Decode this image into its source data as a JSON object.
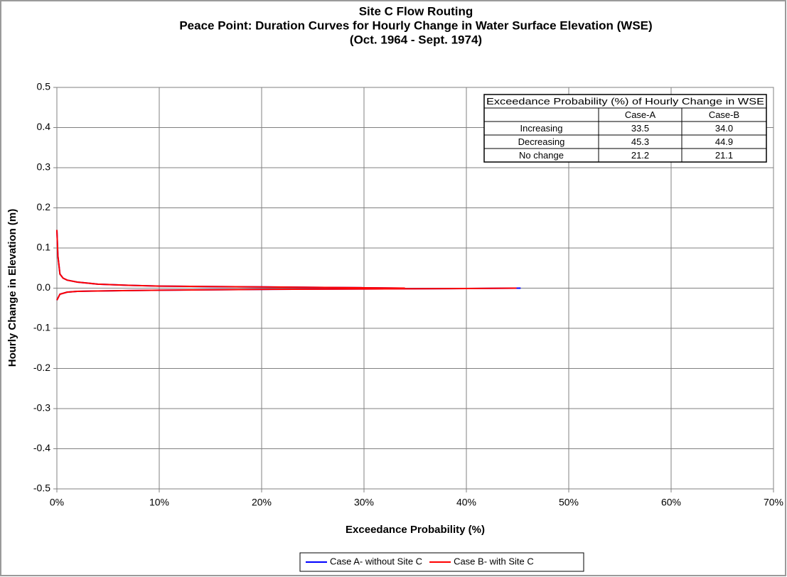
{
  "chart_data": {
    "type": "line",
    "title": "Site C Flow Routing",
    "subtitle": "Peace Point: Duration Curves for Hourly Change in Water Surface Elevation (WSE)",
    "period": "(Oct. 1964 - Sept. 1974)",
    "x_label": "Exceedance Probability (%)",
    "y_label": "Hourly Change in Elevation (m)",
    "xlim": [
      0,
      70
    ],
    "ylim": [
      -0.5,
      0.5
    ],
    "xticks": [
      {
        "value": 0,
        "label": "0%"
      },
      {
        "value": 10,
        "label": "10%"
      },
      {
        "value": 20,
        "label": "20%"
      },
      {
        "value": 30,
        "label": "30%"
      },
      {
        "value": 40,
        "label": "40%"
      },
      {
        "value": 50,
        "label": "50%"
      },
      {
        "value": 60,
        "label": "60%"
      },
      {
        "value": 70,
        "label": "70%"
      }
    ],
    "yticks": [
      0.5,
      0.4,
      0.3,
      0.2,
      0.1,
      {
        "value": 0,
        "label": "0.0"
      },
      -0.1,
      -0.2,
      -0.3,
      -0.4,
      -0.5
    ],
    "grid": true,
    "legend": "bottom",
    "series": [
      {
        "name": "Case A- without Site C",
        "color": "#0000ff",
        "x": [
          0,
          0.1,
          0.3,
          0.6,
          1,
          2,
          4,
          7,
          10,
          15,
          20,
          25,
          30,
          33.5,
          null,
          0,
          0.3,
          1,
          2,
          4,
          7,
          10,
          20,
          30,
          40,
          45.3
        ],
        "values": [
          0.145,
          0.08,
          0.035,
          0.025,
          0.02,
          0.015,
          0.01,
          0.007,
          0.005,
          0.004,
          0.003,
          0.002,
          0.001,
          0,
          null,
          -0.03,
          -0.015,
          -0.01,
          -0.008,
          -0.007,
          -0.006,
          -0.005,
          -0.003,
          -0.002,
          -0.001,
          0
        ]
      },
      {
        "name": "Case B- with Site C",
        "color": "#ff0000",
        "x": [
          0,
          0.1,
          0.3,
          0.6,
          1,
          2,
          4,
          7,
          10,
          15,
          20,
          25,
          30,
          34,
          null,
          0,
          0.3,
          1,
          2,
          4,
          7,
          10,
          20,
          30,
          40,
          44.9
        ],
        "values": [
          0.145,
          0.08,
          0.035,
          0.025,
          0.02,
          0.015,
          0.01,
          0.007,
          0.005,
          0.004,
          0.003,
          0.002,
          0.001,
          0,
          null,
          -0.03,
          -0.015,
          -0.01,
          -0.008,
          -0.007,
          -0.006,
          -0.005,
          -0.003,
          -0.002,
          -0.001,
          0
        ]
      }
    ],
    "table": {
      "title": "Exceedance Probability (%) of Hourly Change in WSE",
      "columns": [
        "Case-A",
        "Case-B"
      ],
      "rows": [
        {
          "label": "Increasing",
          "values": [
            "33.5",
            "34.0"
          ]
        },
        {
          "label": "Decreasing",
          "values": [
            "45.3",
            "44.9"
          ]
        },
        {
          "label": "No change",
          "values": [
            "21.2",
            "21.1"
          ]
        }
      ]
    }
  }
}
